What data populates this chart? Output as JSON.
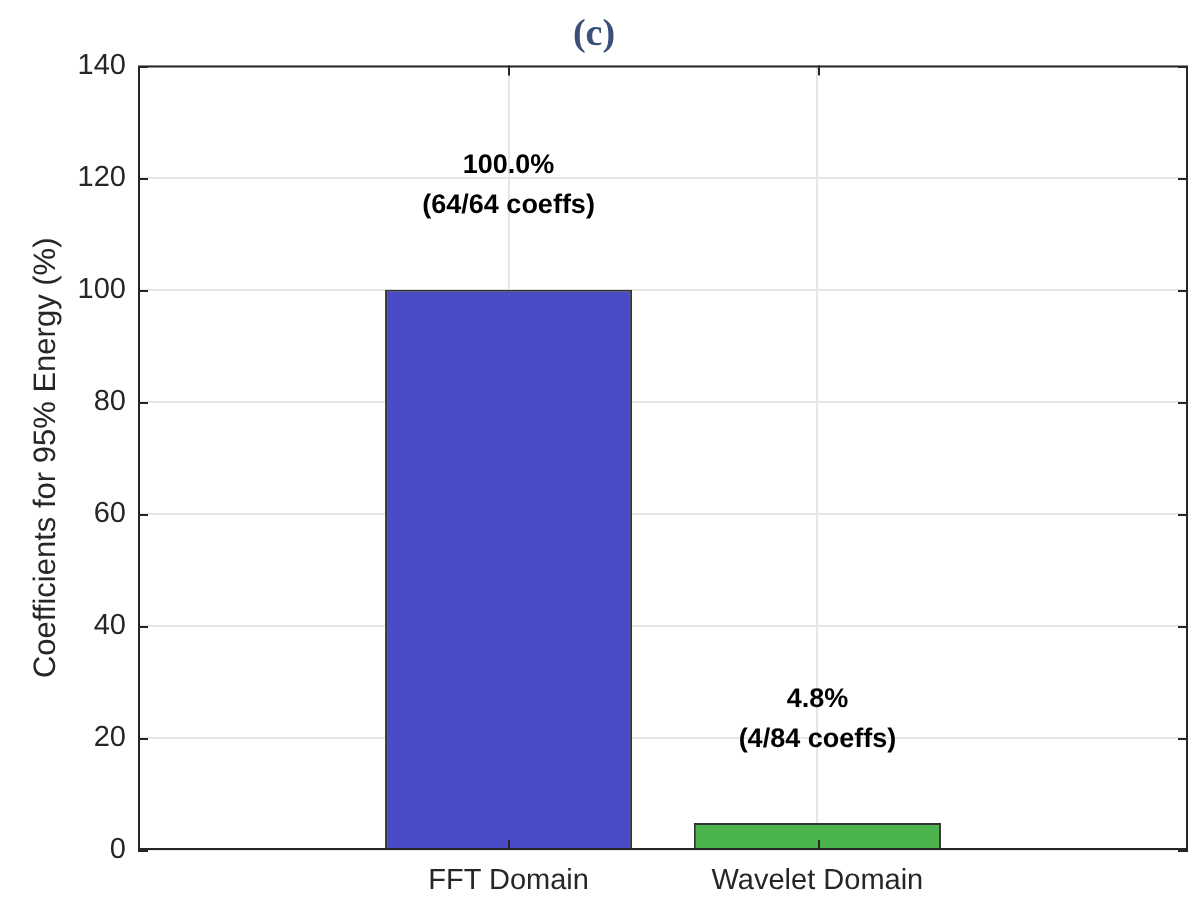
{
  "chart_data": {
    "type": "bar",
    "title": "(c)",
    "ylabel": "Coefficients for 95% Energy (%)",
    "categories": [
      "FFT Domain",
      "Wavelet Domain"
    ],
    "values": [
      100.0,
      4.8
    ],
    "colors": [
      "#4b4bc8",
      "#4bb34b"
    ],
    "value_labels": [
      "100.0%\n(64/64 coeffs)",
      "4.8%\n(4/84 coeffs)"
    ],
    "ylim": [
      0,
      140
    ],
    "yticks": [
      0,
      20,
      40,
      60,
      80,
      100,
      120,
      140
    ],
    "grid": true
  }
}
